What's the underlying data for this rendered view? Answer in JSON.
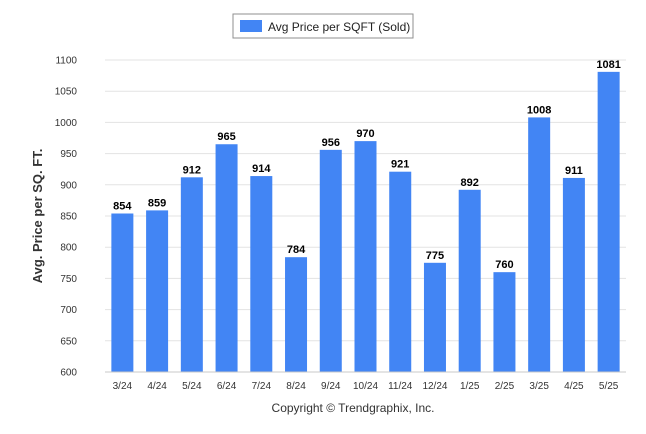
{
  "chart_data": {
    "type": "bar",
    "title": "",
    "xlabel": "",
    "ylabel": "Avg. Price per SQ. FT.",
    "ylim": [
      600,
      1100
    ],
    "yticks": [
      600,
      650,
      700,
      750,
      800,
      850,
      900,
      950,
      1000,
      1050,
      1100
    ],
    "grid": true,
    "legend_placement": "top-center",
    "categories": [
      "3/24",
      "4/24",
      "5/24",
      "6/24",
      "7/24",
      "8/24",
      "9/24",
      "10/24",
      "11/24",
      "12/24",
      "1/25",
      "2/25",
      "3/25",
      "4/25",
      "5/25"
    ],
    "series": [
      {
        "name": "Avg Price per SQFT (Sold)",
        "color": "#4285f4",
        "values": [
          854,
          859,
          912,
          965,
          914,
          784,
          956,
          970,
          921,
          775,
          892,
          760,
          1008,
          911,
          1081
        ]
      }
    ]
  },
  "footer": {
    "copyright": "Copyright © Trendgraphix, Inc."
  }
}
